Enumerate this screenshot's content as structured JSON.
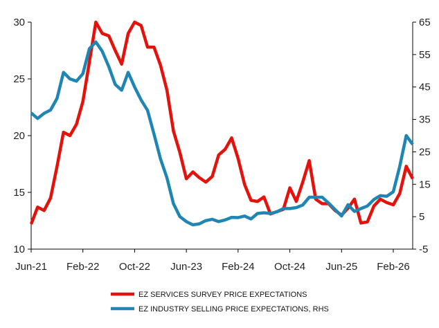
{
  "chart_data": {
    "type": "line",
    "title": "",
    "xlabel": "",
    "ylabel": "",
    "x_start": "Jun-21",
    "x_tick_labels": [
      "Jun-21",
      "Feb-22",
      "Oct-22",
      "Jun-23",
      "Feb-24",
      "Oct-24",
      "Jun-25",
      "Feb-26"
    ],
    "y_left": {
      "ticks": [
        10,
        15,
        20,
        25,
        30
      ],
      "range": [
        10,
        30
      ]
    },
    "y_right": {
      "ticks": [
        -5,
        5,
        15,
        25,
        35,
        45,
        55,
        65
      ],
      "range": [
        -5,
        65
      ]
    },
    "legend_position": "bottom",
    "series": [
      {
        "name": "EZ SERVICES SURVEY PRICE EXPECTATIONS",
        "axis": "left",
        "color": "#e3120b",
        "values": [
          12.2,
          13.7,
          13.4,
          14.5,
          17.3,
          20.3,
          20.0,
          21.0,
          23.0,
          26.5,
          30.0,
          29.0,
          28.8,
          27.5,
          26.3,
          29.0,
          30.0,
          29.7,
          27.8,
          27.8,
          26.2,
          24.0,
          20.4,
          18.5,
          16.2,
          16.8,
          16.3,
          15.9,
          16.4,
          18.3,
          18.8,
          19.8,
          18.0,
          15.7,
          14.3,
          14.2,
          14.6,
          13.1,
          13.3,
          13.5,
          15.4,
          14.2,
          15.9,
          17.8,
          14.4,
          14.0,
          14.0,
          13.4,
          13.0,
          13.6,
          14.4,
          12.3,
          12.4,
          13.8,
          14.4,
          14.1,
          13.9,
          14.9,
          17.3,
          16.2
        ]
      },
      {
        "name": "EZ INDUSTRY SELLING PRICE EXPECTATIONS, RHS",
        "axis": "right",
        "color": "#1f86b3",
        "values": [
          37.0,
          35.3,
          36.9,
          37.9,
          41.5,
          49.5,
          47.5,
          46.8,
          49.1,
          56.8,
          58.9,
          56.0,
          51.3,
          45.8,
          44.0,
          49.5,
          45.0,
          41.0,
          37.8,
          30.5,
          22.8,
          17.0,
          9.0,
          5.0,
          3.5,
          2.5,
          2.8,
          3.8,
          4.2,
          3.5,
          4.0,
          4.8,
          4.7,
          5.2,
          4.3,
          6.0,
          6.2,
          6.0,
          6.5,
          7.5,
          7.5,
          7.8,
          8.6,
          11.0,
          11.0,
          11.0,
          9.2,
          7.2,
          5.2,
          8.7,
          6.6,
          7.5,
          8.3,
          10.3,
          11.5,
          11.3,
          12.7,
          20.5,
          30.0,
          27.3
        ]
      }
    ]
  }
}
